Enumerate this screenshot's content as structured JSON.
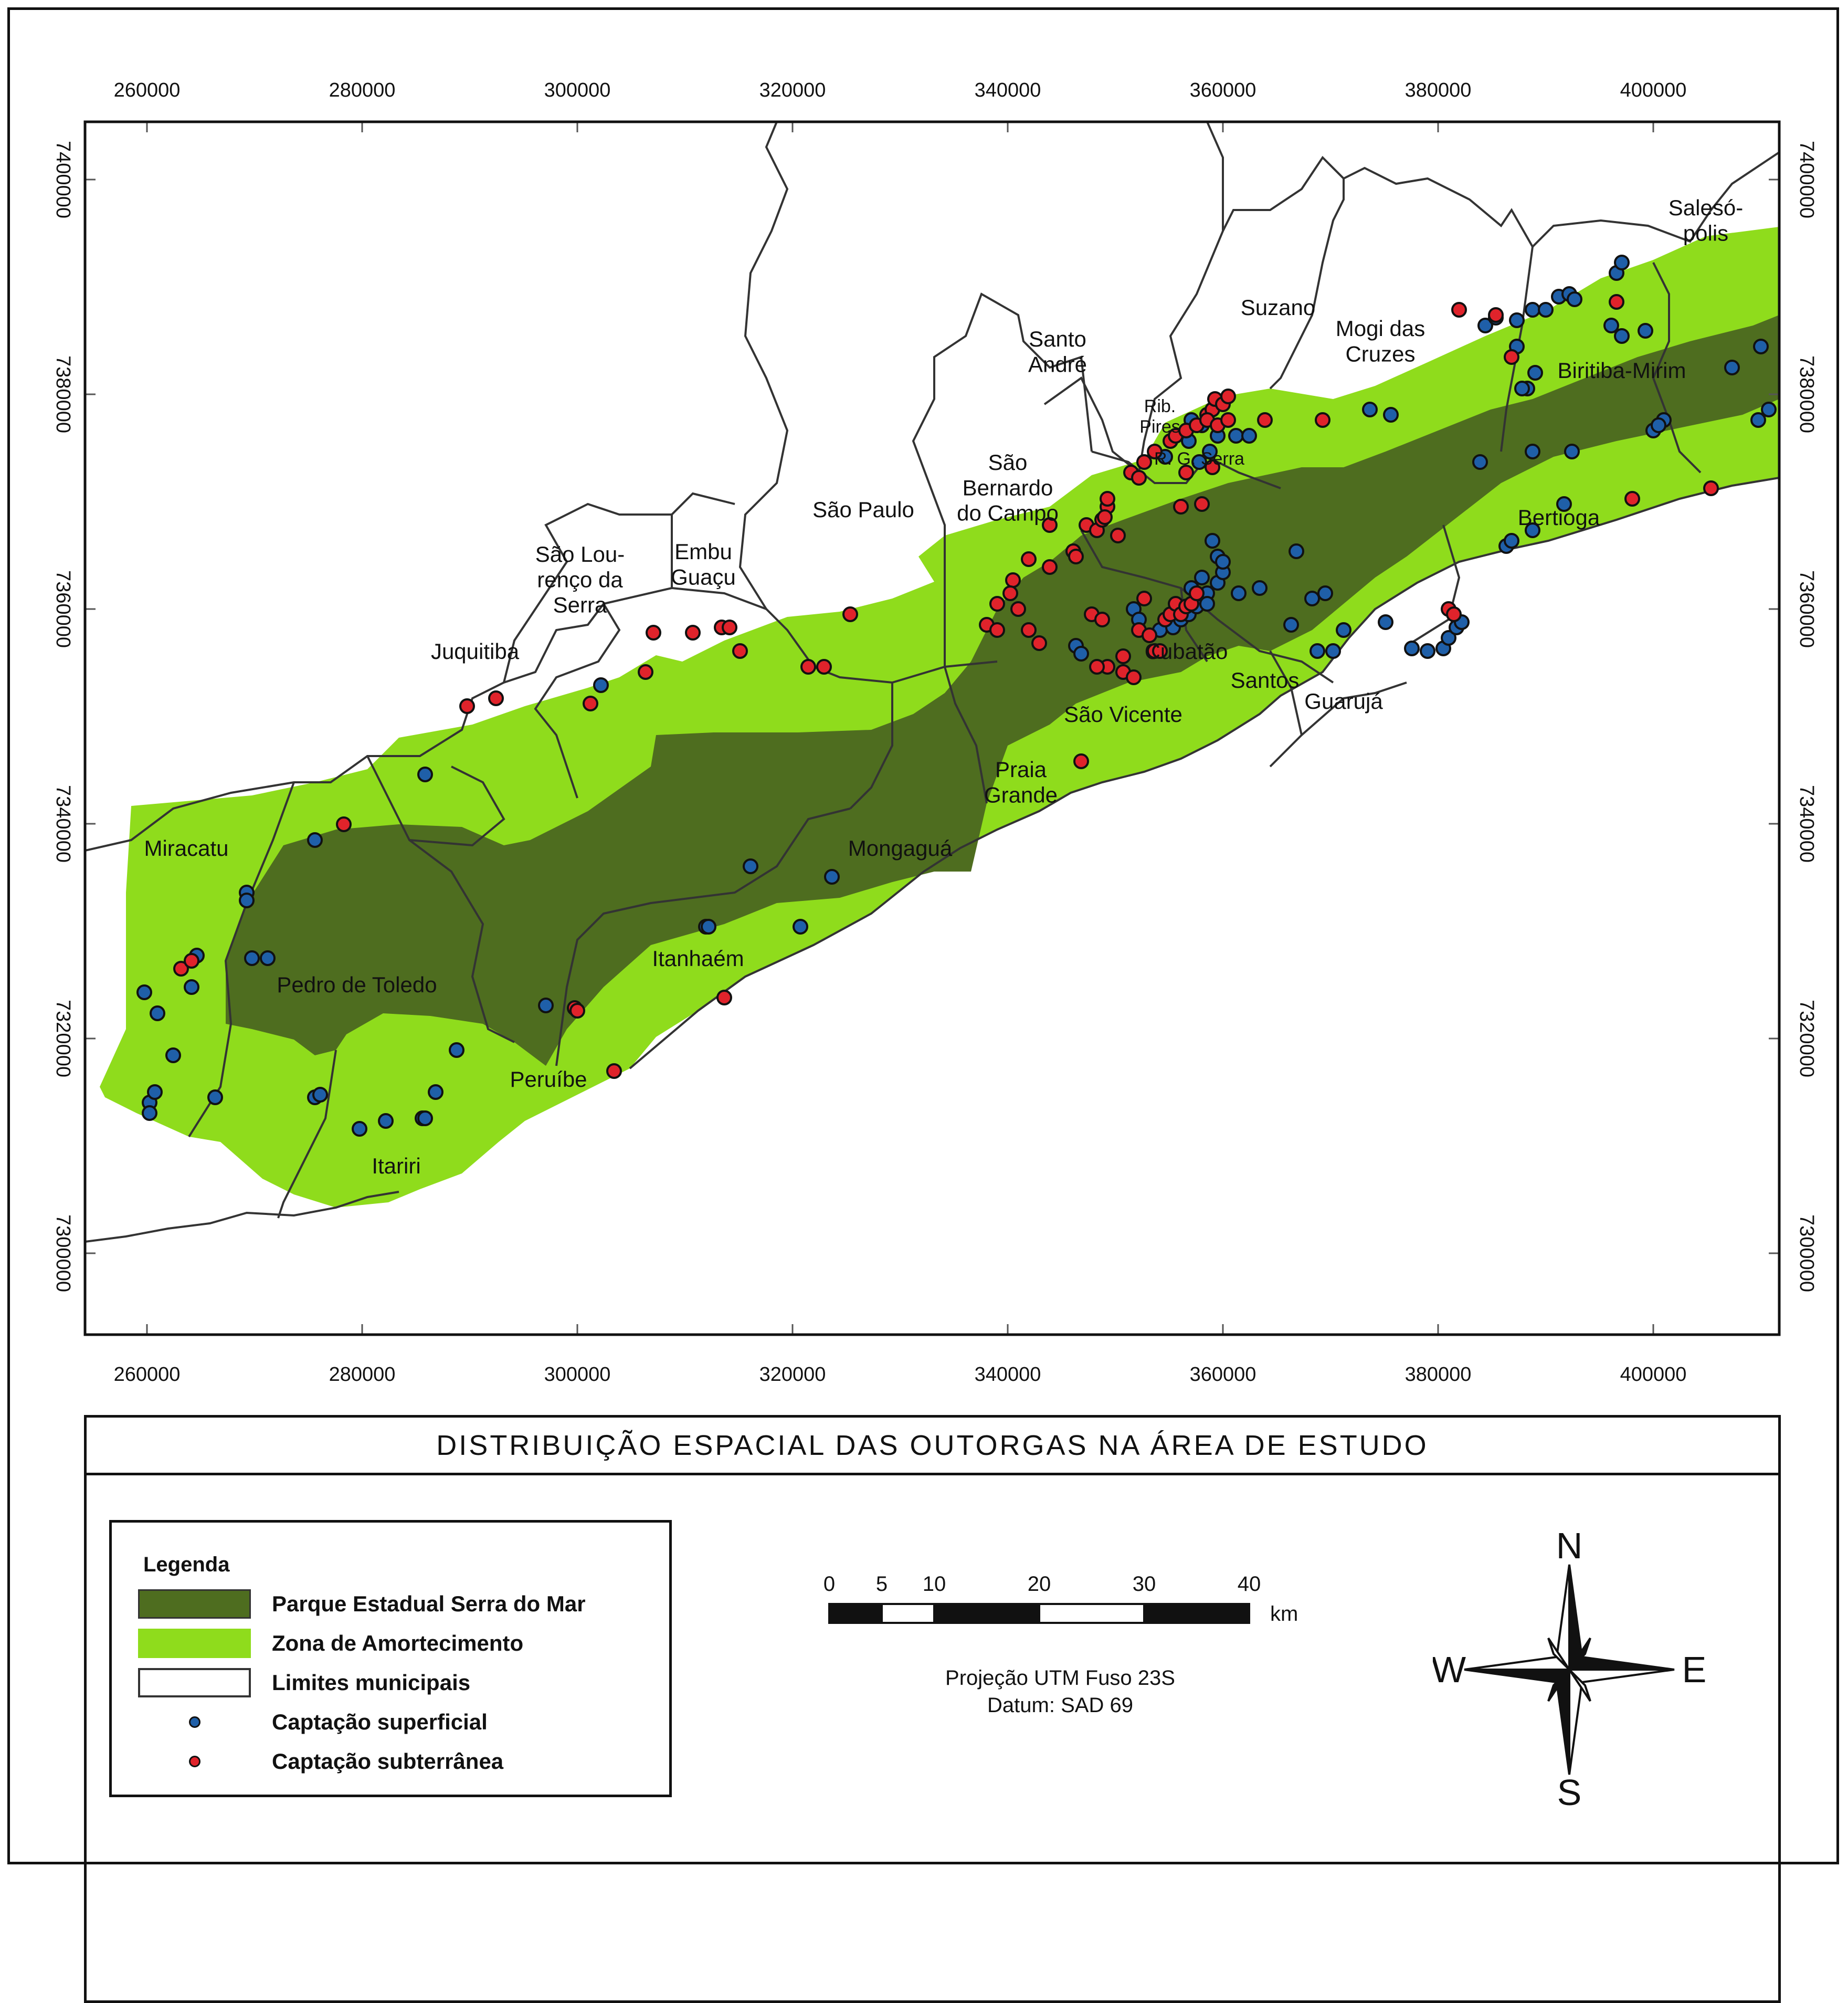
{
  "map": {
    "x_ticks": [
      "260000",
      "280000",
      "300000",
      "320000",
      "340000",
      "360000",
      "380000",
      "400000"
    ],
    "y_ticks": [
      "7400000",
      "7380000",
      "7360000",
      "7340000",
      "7320000",
      "7300000"
    ],
    "municipalities": [
      {
        "id": "salesopolis",
        "lines": [
          "Salesó-",
          "polis"
        ]
      },
      {
        "id": "suzano",
        "lines": [
          "Suzano"
        ]
      },
      {
        "id": "mogi-das-cruzes",
        "lines": [
          "Mogi das",
          "Cruzes"
        ]
      },
      {
        "id": "biritiba-mirim",
        "lines": [
          "Biritiba-Mirim"
        ]
      },
      {
        "id": "santo-andre",
        "lines": [
          "Santo",
          "André"
        ]
      },
      {
        "id": "rib-pires",
        "lines": [
          "Rib.",
          "Pires"
        ]
      },
      {
        "id": "rio-grande-da-serra",
        "lines": [
          "R. G. Serra"
        ]
      },
      {
        "id": "sao-bernardo-do-campo",
        "lines": [
          "São",
          "Bernardo",
          "do Campo"
        ]
      },
      {
        "id": "sao-paulo",
        "lines": [
          "São Paulo"
        ]
      },
      {
        "id": "embu-guacu",
        "lines": [
          "Embu",
          "Guaçu"
        ]
      },
      {
        "id": "sao-lourenco-da-serra",
        "lines": [
          "São Lou-",
          "renço da",
          "Serra"
        ]
      },
      {
        "id": "juquitiba",
        "lines": [
          "Juquitiba"
        ]
      },
      {
        "id": "bertioga",
        "lines": [
          "Bertioga"
        ]
      },
      {
        "id": "cubatao",
        "lines": [
          "Cubatão"
        ]
      },
      {
        "id": "santos",
        "lines": [
          "Santos"
        ]
      },
      {
        "id": "guaruja",
        "lines": [
          "Guarujá"
        ]
      },
      {
        "id": "sao-vicente",
        "lines": [
          "São Vicente"
        ]
      },
      {
        "id": "praia-grande",
        "lines": [
          "Praia",
          "Grande"
        ]
      },
      {
        "id": "mongagua",
        "lines": [
          "Mongaguá"
        ]
      },
      {
        "id": "itanhaem",
        "lines": [
          "Itanhaém"
        ]
      },
      {
        "id": "miracatu",
        "lines": [
          "Miracatu"
        ]
      },
      {
        "id": "pedro-de-toledo",
        "lines": [
          "Pedro de Toledo"
        ]
      },
      {
        "id": "peruibe",
        "lines": [
          "Peruíbe"
        ]
      },
      {
        "id": "itariri",
        "lines": [
          "Itariri"
        ]
      }
    ]
  },
  "title": "DISTRIBUIÇÃO  ESPACIAL  DAS  OUTORGAS NA  ÁREA  DE ESTUDO",
  "legend": {
    "title": "Legenda",
    "items": [
      {
        "label": "Parque Estadual Serra do Mar",
        "color": "#4e6d1f",
        "kind": "fill"
      },
      {
        "label": "Zona de Amortecimento",
        "color": "#8fdc1c",
        "kind": "fill"
      },
      {
        "label": "Limites municipais",
        "color": "#ffffff",
        "kind": "outline"
      },
      {
        "label": "Captação superficial",
        "color": "#1f5fa8",
        "kind": "dot"
      },
      {
        "label": "Captação subterrânea",
        "color": "#e0232b",
        "kind": "dot"
      }
    ]
  },
  "scale": {
    "labels": [
      "0",
      "5",
      "10",
      "20",
      "30",
      "40"
    ],
    "unit": "km"
  },
  "projection": {
    "line1": "Projeção UTM Fuso 23S",
    "line2": "Datum: SAD 69"
  },
  "compass": {
    "n": "N",
    "s": "S",
    "e": "E",
    "w": "W"
  },
  "colors": {
    "park": "#4e6d1f",
    "buffer": "#8fdc1c",
    "surface": "#1f5fa8",
    "ground": "#e0232b",
    "border": "#222222"
  }
}
